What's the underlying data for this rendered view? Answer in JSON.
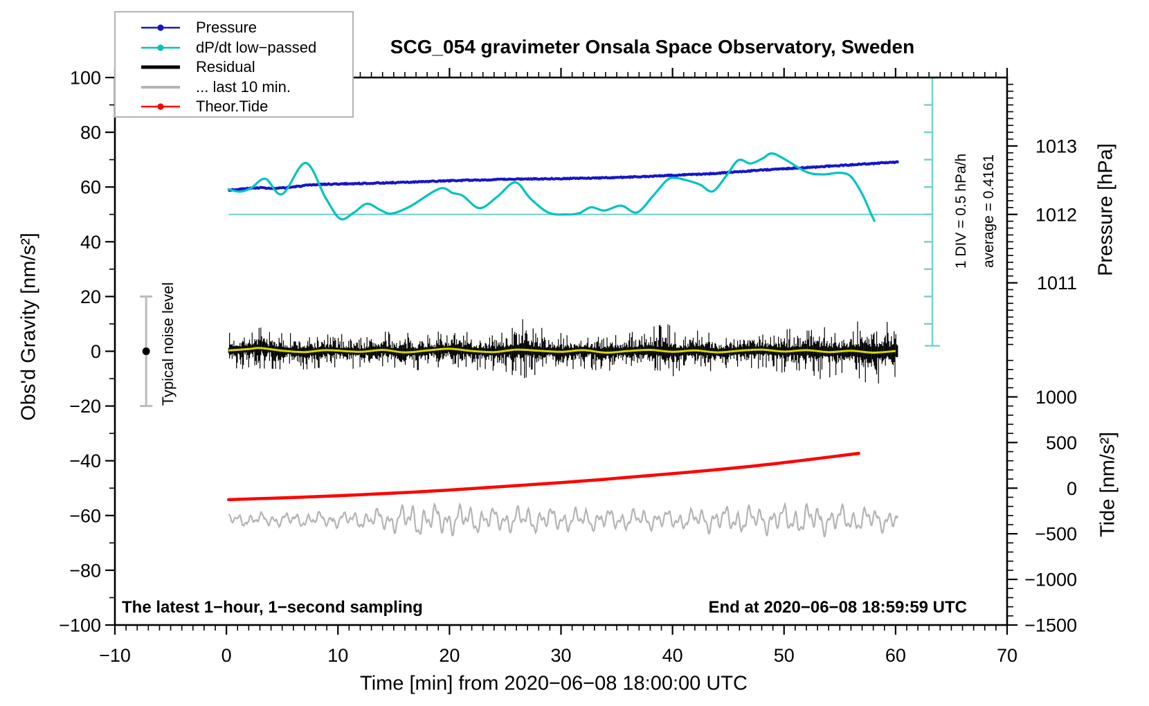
{
  "title": "SCG_054 gravimeter Onsala Space Observatory, Sweden",
  "legend": {
    "items": [
      {
        "label": "Pressure",
        "color": "#1616c8",
        "marker": "line-dot",
        "weight": 2.5
      },
      {
        "label": "dP/dt low−passed",
        "color": "#00c2c2",
        "marker": "line-dot",
        "weight": 2.5
      },
      {
        "label": "Residual",
        "color": "#000000",
        "marker": "line",
        "weight": 5
      },
      {
        "label": "... last 10 min.",
        "color": "#b4b4b4",
        "marker": "line",
        "weight": 4
      },
      {
        "label": "Theor.Tide",
        "color": "#ff0000",
        "marker": "line-dot",
        "weight": 2.5
      }
    ]
  },
  "annotations": {
    "bottom_left": "The latest 1−hour, 1−second sampling",
    "bottom_right": "End at 2020−06−08 18:59:59 UTC",
    "noise_marker_text": "Typical noise level",
    "scalebar_div_text": "1 DIV = 0.5 hPa/h",
    "scalebar_avg_text": "average = 0.4161"
  },
  "chart_data": {
    "type": "line",
    "title": "SCG_054 gravimeter Onsala Space Observatory, Sweden",
    "x_axis": {
      "label": "Time [min] from 2020−06−08 18:00:00 UTC",
      "range": [
        -10,
        70
      ],
      "major_tick": 10,
      "minor_tick": 1,
      "tick_labels": [
        -10,
        0,
        10,
        20,
        30,
        40,
        50,
        60,
        70
      ]
    },
    "y_axis_gravity": {
      "label": "Obs'd Gravity [nm/s²]",
      "range": [
        -100,
        100
      ],
      "major_tick": 20,
      "minor_tick": 10,
      "tick_labels": [
        100,
        80,
        60,
        40,
        20,
        0,
        -20,
        -40,
        -60,
        -80,
        -100
      ]
    },
    "y_axis_pressure": {
      "label": "Pressure [hPa]",
      "range": [
        1010,
        1014
      ],
      "minor_tick": 0.1,
      "tick_labels": [
        1013,
        1012,
        1011
      ],
      "gravity_of_1012": 50,
      "gravity_per_hpa": 25
    },
    "y_axis_tide": {
      "label": "Tide [nm/s²]",
      "range": [
        -1500,
        1500
      ],
      "minor_tick": 100,
      "tick_labels": [
        1000,
        500,
        0,
        -500,
        -1000,
        -1500
      ],
      "gravity_of_zero": -50,
      "tide_per_gravity": 30
    },
    "grid": false,
    "legend_position": "top-left",
    "reference_lines": {
      "dpdt_zero_gravity": 50
    },
    "scalebar": {
      "t": 63.3,
      "top_gravity": 100,
      "bottom_gravity": 2,
      "div_gravity": 10,
      "div_label": "1 DIV = 0.5 hPa/h",
      "average_label": "average = 0.4161",
      "average_hpa_per_h": 0.4161
    },
    "noise_marker": {
      "t": -7.2,
      "center_gravity": 0,
      "half_range": 20,
      "label": "Typical noise level"
    },
    "series": {
      "pressure": {
        "name": "Pressure",
        "color": "#1616c8",
        "axis": "gravity(=1012+((g-50)/25) hPa)",
        "points": [
          [
            0.2,
            58.9
          ],
          [
            1.5,
            59.3
          ],
          [
            3.0,
            59.8
          ],
          [
            4.2,
            59.4
          ],
          [
            5.5,
            59.8
          ],
          [
            7.0,
            60.5
          ],
          [
            8.5,
            61.0
          ],
          [
            10,
            61.1
          ],
          [
            12,
            61.3
          ],
          [
            14,
            61.5
          ],
          [
            16,
            61.7
          ],
          [
            18,
            62.0
          ],
          [
            20,
            62.3
          ],
          [
            22,
            62.5
          ],
          [
            24,
            62.7
          ],
          [
            26,
            62.9
          ],
          [
            28,
            63.0
          ],
          [
            30,
            63.1
          ],
          [
            32,
            63.2
          ],
          [
            34,
            63.4
          ],
          [
            36,
            63.6
          ],
          [
            38,
            63.9
          ],
          [
            40,
            64.3
          ],
          [
            42,
            64.6
          ],
          [
            44,
            65.0
          ],
          [
            46,
            65.6
          ],
          [
            48,
            66.2
          ],
          [
            50,
            66.7
          ],
          [
            52,
            67.1
          ],
          [
            54,
            67.6
          ],
          [
            56,
            68.1
          ],
          [
            58,
            68.6
          ],
          [
            59.5,
            69.0
          ],
          [
            60.3,
            69.1
          ]
        ],
        "jitter": 0.2,
        "seed": 3
      },
      "dpdt_lowpassed": {
        "name": "dP/dt low−passed",
        "color": "#00c2c2",
        "baseline_gravity": 50,
        "points": [
          [
            0.2,
            59.2
          ],
          [
            1.2,
            58.3
          ],
          [
            2.2,
            59.6
          ],
          [
            3.5,
            63.0
          ],
          [
            5.0,
            57.4
          ],
          [
            7.1,
            68.8
          ],
          [
            8.9,
            56.0
          ],
          [
            10.2,
            48.4
          ],
          [
            11.4,
            50.6
          ],
          [
            12.6,
            53.9
          ],
          [
            13.8,
            51.6
          ],
          [
            14.8,
            50.3
          ],
          [
            16.5,
            53.0
          ],
          [
            19.1,
            59.4
          ],
          [
            20.3,
            57.8
          ],
          [
            21.2,
            56.8
          ],
          [
            22.7,
            52.3
          ],
          [
            24.3,
            56.5
          ],
          [
            25.9,
            61.7
          ],
          [
            27.3,
            55.6
          ],
          [
            28.9,
            50.6
          ],
          [
            30.5,
            50.0
          ],
          [
            31.6,
            50.4
          ],
          [
            32.7,
            52.6
          ],
          [
            33.9,
            51.4
          ],
          [
            35.4,
            53.2
          ],
          [
            36.8,
            50.7
          ],
          [
            38.2,
            56.5
          ],
          [
            39.5,
            62.5
          ],
          [
            40.3,
            63.3
          ],
          [
            41.5,
            62.2
          ],
          [
            42.5,
            60.8
          ],
          [
            43.6,
            58.4
          ],
          [
            44.8,
            64.0
          ],
          [
            45.9,
            69.8
          ],
          [
            47.0,
            68.6
          ],
          [
            48.1,
            70.5
          ],
          [
            48.9,
            72.3
          ],
          [
            50.0,
            70.3
          ],
          [
            52.0,
            65.5
          ],
          [
            53.5,
            64.6
          ],
          [
            55.0,
            65.2
          ],
          [
            56.0,
            63.8
          ],
          [
            57.0,
            57.5
          ],
          [
            57.8,
            50.2
          ],
          [
            58.1,
            47.6
          ]
        ]
      },
      "residual": {
        "name": "Residual",
        "color": "#000000",
        "center_gravity": 0,
        "envelope": [
          [
            0.2,
            2.7
          ],
          [
            2.5,
            3.3
          ],
          [
            4,
            3.0
          ],
          [
            7,
            2.7
          ],
          [
            10,
            2.6
          ],
          [
            13,
            2.8
          ],
          [
            16,
            3.0
          ],
          [
            19,
            2.8
          ],
          [
            22,
            2.9
          ],
          [
            25,
            3.2
          ],
          [
            26.5,
            4.8
          ],
          [
            27.5,
            4.2
          ],
          [
            29,
            3.0
          ],
          [
            31,
            2.8
          ],
          [
            33,
            2.9
          ],
          [
            35,
            2.8
          ],
          [
            37,
            3.0
          ],
          [
            39.5,
            4.3
          ],
          [
            40.5,
            3.4
          ],
          [
            43,
            3.0
          ],
          [
            45,
            3.1
          ],
          [
            47,
            3.3
          ],
          [
            49,
            3.1
          ],
          [
            51,
            3.6
          ],
          [
            52.5,
            4.6
          ],
          [
            54,
            4.0
          ],
          [
            55.5,
            3.2
          ],
          [
            56.5,
            4.6
          ],
          [
            58,
            5.0
          ],
          [
            59.3,
            4.6
          ],
          [
            60.2,
            3.8
          ]
        ],
        "seed": 7,
        "t_range": [
          0.2,
          60.2
        ]
      },
      "residual_lowpass": {
        "name": "Residual low-passed (center line)",
        "color": "#d6d600",
        "points": [
          [
            0.2,
            0.3
          ],
          [
            2,
            0.8
          ],
          [
            3,
            1.2
          ],
          [
            5,
            0.2
          ],
          [
            7,
            -0.3
          ],
          [
            9,
            0.4
          ],
          [
            12,
            -0.2
          ],
          [
            14,
            0.5
          ],
          [
            16,
            -0.4
          ],
          [
            18,
            0.3
          ],
          [
            20,
            0.9
          ],
          [
            22,
            0.1
          ],
          [
            24,
            -0.3
          ],
          [
            26,
            0.6
          ],
          [
            28,
            0.2
          ],
          [
            30,
            -0.2
          ],
          [
            32,
            0.4
          ],
          [
            34,
            -0.5
          ],
          [
            36,
            0.1
          ],
          [
            38,
            0.5
          ],
          [
            40,
            -0.2
          ],
          [
            42,
            0.3
          ],
          [
            44,
            -0.4
          ],
          [
            46,
            0.2
          ],
          [
            48,
            0.6
          ],
          [
            50,
            -0.1
          ],
          [
            52,
            0.4
          ],
          [
            54,
            -0.3
          ],
          [
            56,
            0.2
          ],
          [
            58,
            -0.5
          ],
          [
            60,
            0.1
          ]
        ]
      },
      "last_10_min": {
        "name": "... last 10 min.",
        "color": "#b4b4b4",
        "center_gravity": -61.5,
        "envelope": [
          [
            0.2,
            2.2
          ],
          [
            4,
            2.4
          ],
          [
            8,
            2.7
          ],
          [
            12,
            3.1
          ],
          [
            15,
            4.6
          ],
          [
            17,
            6.3
          ],
          [
            18.5,
            5.4
          ],
          [
            20,
            5.8
          ],
          [
            22,
            5.0
          ],
          [
            24,
            4.3
          ],
          [
            26,
            4.7
          ],
          [
            28,
            4.5
          ],
          [
            30,
            4.2
          ],
          [
            32,
            4.1
          ],
          [
            34,
            3.7
          ],
          [
            36,
            3.9
          ],
          [
            38,
            3.6
          ],
          [
            40,
            3.4
          ],
          [
            42,
            3.8
          ],
          [
            44,
            4.5
          ],
          [
            46,
            5.1
          ],
          [
            48,
            4.7
          ],
          [
            50,
            5.3
          ],
          [
            52,
            5.7
          ],
          [
            54,
            5.1
          ],
          [
            56,
            4.7
          ],
          [
            58,
            4.3
          ],
          [
            60.2,
            4.1
          ]
        ],
        "seed": 11,
        "t_range": [
          0.2,
          60.2
        ]
      },
      "theor_tide": {
        "name": "Theor.Tide",
        "color": "#ff0000",
        "axis": "tide(=30*(g+50) nm/s²)",
        "points": [
          [
            0.2,
            -54.2
          ],
          [
            10,
            -52.8
          ],
          [
            20,
            -50.7
          ],
          [
            30,
            -48.0
          ],
          [
            40,
            -44.7
          ],
          [
            48,
            -41.6
          ],
          [
            56.7,
            -37.3
          ]
        ]
      }
    }
  }
}
